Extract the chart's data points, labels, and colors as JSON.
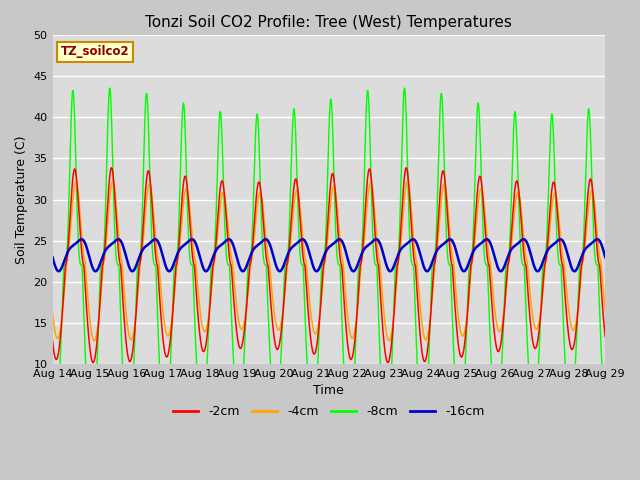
{
  "title": "Tonzi Soil CO2 Profile: Tree (West) Temperatures",
  "xlabel": "Time",
  "ylabel": "Soil Temperature (C)",
  "ylim": [
    10,
    50
  ],
  "yticks": [
    10,
    15,
    20,
    25,
    30,
    35,
    40,
    45,
    50
  ],
  "bg_color": "#dcdcdc",
  "series": [
    {
      "label": "-2cm",
      "color": "#ff0000"
    },
    {
      "label": "-4cm",
      "color": "#ffa500"
    },
    {
      "label": "-8cm",
      "color": "#00ff00"
    },
    {
      "label": "-16cm",
      "color": "#0000cd"
    }
  ],
  "annotation_text": "TZ_soilco2",
  "annotation_color": "#8b0000",
  "annotation_bg": "#ffffcc",
  "annotation_border": "#cc8800",
  "n_days": 15,
  "start_day": 14,
  "ppd": 288,
  "base_2cm": 22.0,
  "amp_2cm": 11.0,
  "base_4cm": 22.5,
  "amp_4cm": 9.0,
  "base_8cm": 22.0,
  "amp_8cm": 20.0,
  "spike_sharpness": 4.0,
  "base_16cm": 23.5,
  "amp_16cm": 1.8,
  "phase_2cm": 2.2,
  "phase_4cm": 2.4,
  "phase_8cm": 1.9,
  "phase_16cm": 2.8
}
